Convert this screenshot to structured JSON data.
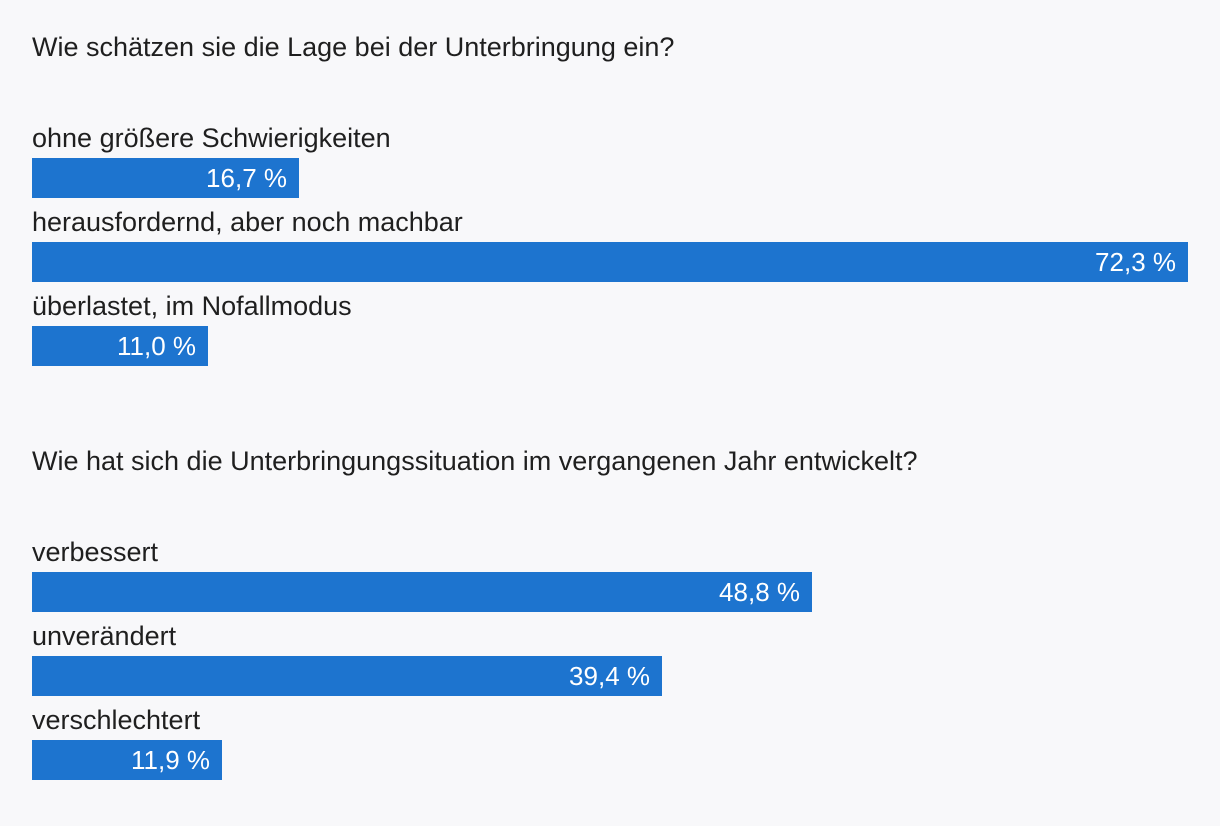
{
  "chart_data": [
    {
      "type": "bar",
      "orientation": "horizontal",
      "title": "Wie schätzen sie die Lage bei der Unterbringung ein?",
      "unit": "%",
      "xlim": [
        0,
        72.3
      ],
      "categories": [
        "ohne größere Schwierigkeiten",
        "herausfordernd, aber noch machbar",
        "überlastet, im Nofallmodus"
      ],
      "values": [
        16.7,
        72.3,
        11.0
      ],
      "value_labels": [
        "16,7 %",
        "72,3 %",
        "11,0 %"
      ],
      "color": "#1d74cf"
    },
    {
      "type": "bar",
      "orientation": "horizontal",
      "title": "Wie hat sich die Unterbringungssituation im vergangenen Jahr entwickelt?",
      "unit": "%",
      "xlim": [
        0,
        72.3
      ],
      "categories": [
        "verbessert",
        "unverändert",
        "verschlechtert"
      ],
      "values": [
        48.8,
        39.4,
        11.9
      ],
      "value_labels": [
        "48,8 %",
        "39,4 %",
        "11,9 %"
      ],
      "color": "#1d74cf"
    }
  ]
}
